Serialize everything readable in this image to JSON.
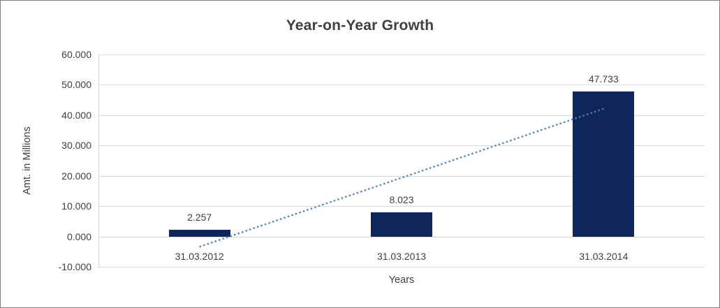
{
  "chart_data": {
    "type": "bar",
    "title": "Year-on-Year Growth",
    "xlabel": "Years",
    "ylabel": "Amt. in Millions",
    "categories": [
      "31.03.2012",
      "31.03.2013",
      "31.03.2014"
    ],
    "values": [
      2.257,
      8.023,
      47.733
    ],
    "data_labels": [
      "2.257",
      "8.023",
      "47.733"
    ],
    "yticks": [
      60,
      50,
      40,
      30,
      20,
      10,
      0,
      -10
    ],
    "ytick_labels": [
      "60.000",
      "50.000",
      "40.000",
      "30.000",
      "20.000",
      "10.000",
      "0.000",
      "-10.000"
    ],
    "ylim": [
      -10,
      60
    ],
    "grid": true,
    "legend": false,
    "bar_color": "#0e265a",
    "gridline_color": "#d9d9d9",
    "text_color": "#404040",
    "frame_border_color": "#808080",
    "trendline": {
      "type": "linear",
      "style": "dotted",
      "color": "#4f81bd",
      "start_value": -3.4,
      "end_value": 42.1
    }
  }
}
